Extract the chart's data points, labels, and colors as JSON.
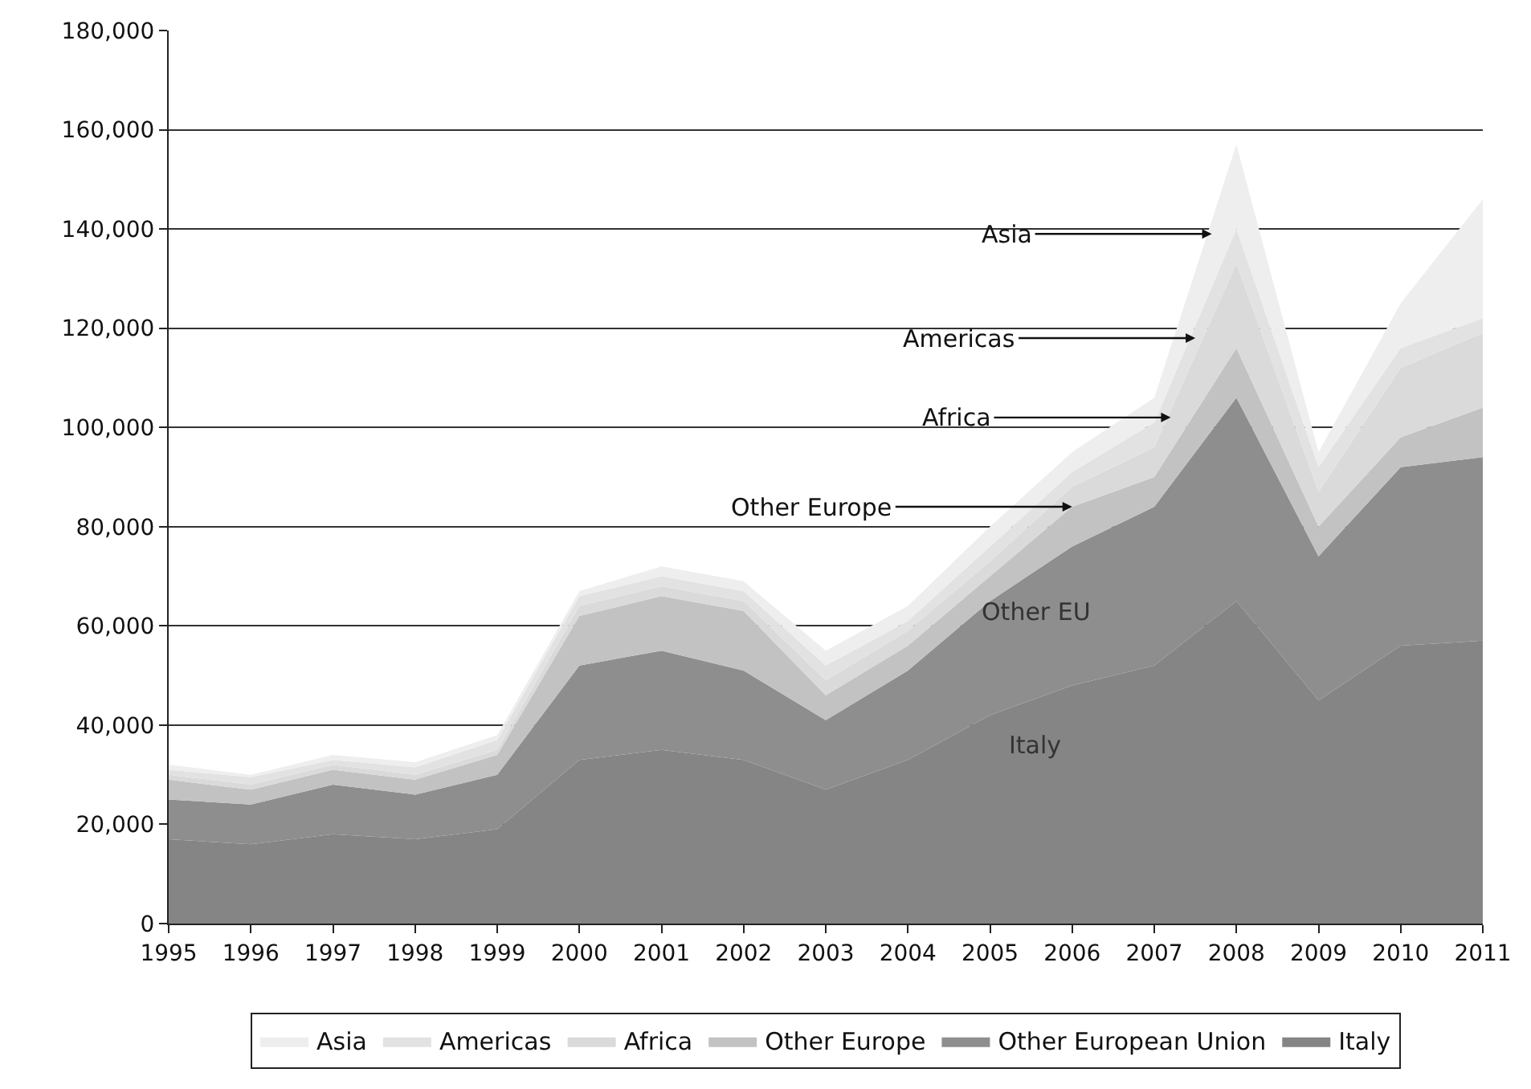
{
  "chart_data": {
    "type": "area",
    "stacked": true,
    "x": [
      1995,
      1996,
      1997,
      1998,
      1999,
      2000,
      2001,
      2002,
      2003,
      2004,
      2005,
      2006,
      2007,
      2008,
      2009,
      2010,
      2011
    ],
    "series": [
      {
        "name": "Italy",
        "color": "#858585",
        "values": [
          17000,
          16000,
          18000,
          17000,
          19000,
          33000,
          35000,
          33000,
          27000,
          33000,
          42000,
          48000,
          52000,
          65000,
          45000,
          56000,
          57000
        ]
      },
      {
        "name": "Other European Union",
        "color": "#8e8e8e",
        "values": [
          8000,
          8000,
          10000,
          9000,
          11000,
          19000,
          20000,
          18000,
          14000,
          18000,
          23000,
          28000,
          32000,
          41000,
          29000,
          36000,
          37000
        ]
      },
      {
        "name": "Other Europe",
        "color": "#c2c2c2",
        "values": [
          4000,
          3000,
          3000,
          3000,
          4000,
          10000,
          11000,
          12000,
          5000,
          5000,
          5000,
          8000,
          6000,
          10000,
          6000,
          6000,
          10000
        ]
      },
      {
        "name": "Africa",
        "color": "#dadada",
        "values": [
          1000,
          1000,
          1000,
          1000,
          1000,
          2000,
          2000,
          2000,
          3000,
          3000,
          3000,
          4000,
          6000,
          17000,
          7000,
          14000,
          15000
        ]
      },
      {
        "name": "Americas",
        "color": "#e2e2e2",
        "values": [
          1000,
          1500,
          1000,
          1500,
          2000,
          2000,
          2000,
          2000,
          3000,
          2000,
          3000,
          3000,
          5000,
          7000,
          5000,
          4000,
          3000
        ]
      },
      {
        "name": "Asia",
        "color": "#eeeeee",
        "values": [
          1000,
          500,
          1000,
          1000,
          1000,
          1000,
          2000,
          2000,
          3000,
          3000,
          4000,
          4000,
          5000,
          17000,
          3000,
          9000,
          24000
        ]
      }
    ],
    "xlim": [
      1995,
      2011
    ],
    "xticks": [
      1995,
      1996,
      1997,
      1998,
      1999,
      2000,
      2001,
      2002,
      2003,
      2004,
      2005,
      2006,
      2007,
      2008,
      2009,
      2010,
      2011
    ],
    "ylim": [
      0,
      180000
    ],
    "yticks": [
      {
        "value": 0,
        "label": "0"
      },
      {
        "value": 20000,
        "label": "20,000"
      },
      {
        "value": 40000,
        "label": "40,000"
      },
      {
        "value": 60000,
        "label": "60,000"
      },
      {
        "value": 80000,
        "label": "80,000"
      },
      {
        "value": 100000,
        "label": "100,000"
      },
      {
        "value": 120000,
        "label": "120,000"
      },
      {
        "value": 140000,
        "label": "140,000"
      },
      {
        "value": 160000,
        "label": "160,000"
      },
      {
        "value": 180000,
        "label": "180,000"
      }
    ],
    "grid": "y",
    "legend": "bottom",
    "annotations": [
      {
        "text": "Asia",
        "x": 2007.7,
        "y": 139000
      },
      {
        "text": "Americas",
        "x": 2007.5,
        "y": 118000
      },
      {
        "text": "Africa",
        "x": 2007.2,
        "y": 102000
      },
      {
        "text": "Other Europe",
        "x": 2006,
        "y": 84000
      },
      "Other EU",
      "Italy"
    ]
  }
}
